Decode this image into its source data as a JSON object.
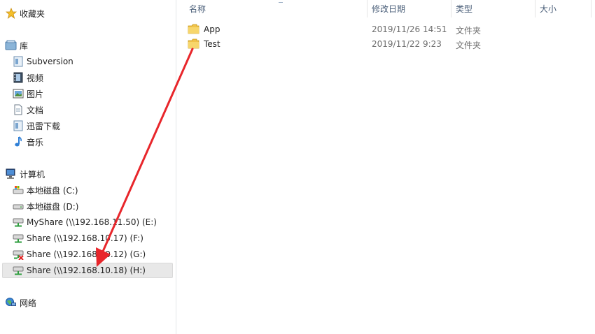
{
  "nav": {
    "favorites": "收藏夹",
    "library": "库",
    "library_items": [
      "Subversion",
      "视频",
      "图片",
      "文档",
      "迅雷下载",
      "音乐"
    ],
    "computer": "计算机",
    "drives": [
      "本地磁盘 (C:)",
      "本地磁盘 (D:)",
      "MyShare (\\\\192.168.11.50) (E:)",
      "Share (\\\\192.168.10.17) (F:)",
      "Share (\\\\192.168.10.12) (G:)",
      "Share (\\\\192.168.10.18) (H:)"
    ],
    "network": "网络",
    "selected_drive_index": 5
  },
  "columns": {
    "name": "名称",
    "date": "修改日期",
    "type": "类型",
    "size": "大小"
  },
  "files": [
    {
      "name": "App",
      "date": "2019/11/26 14:51",
      "type": "文件夹"
    },
    {
      "name": "Test",
      "date": "2019/11/22 9:23",
      "type": "文件夹"
    }
  ],
  "colors": {
    "arrow": "#e8262b",
    "header_text": "#4c607a",
    "folder": "#f2c94c",
    "selection": "#e8e8e8"
  }
}
